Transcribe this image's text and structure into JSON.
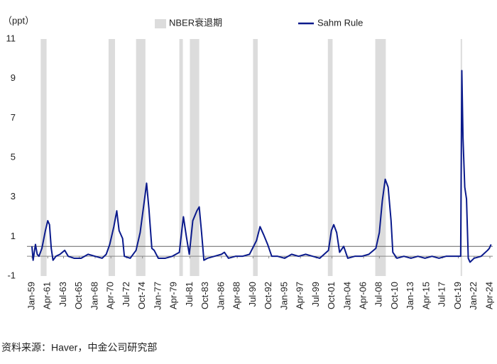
{
  "chart_data": {
    "type": "line",
    "y_unit": "（ppt）",
    "source": "资料来源：Haver，中金公司研究部",
    "ylim": [
      -1,
      11
    ],
    "yticks": [
      -1,
      1,
      3,
      5,
      7,
      9,
      11
    ],
    "xticks": [
      "Jan-59",
      "Apr-61",
      "Jul-63",
      "Oct-65",
      "Jan-68",
      "Apr-70",
      "Jul-72",
      "Oct-74",
      "Jan-77",
      "Apr-79",
      "Jul-81",
      "Oct-83",
      "Jan-86",
      "Apr-88",
      "Jul-90",
      "Oct-92",
      "Jan-95",
      "Apr-97",
      "Jul-99",
      "Oct-01",
      "Jan-04",
      "Apr-06",
      "Jul-08",
      "Oct-10",
      "Jan-13",
      "Apr-15",
      "Jul-17",
      "Oct-19",
      "Jan-22",
      "Apr-24"
    ],
    "reference_line": 0.5,
    "recession": {
      "name": "NBER衰退期",
      "color": "#dcdcdc",
      "periods": [
        [
          "Apr-60",
          "Feb-61"
        ],
        [
          "Dec-69",
          "Nov-70"
        ],
        [
          "Nov-73",
          "Mar-75"
        ],
        [
          "Jan-80",
          "Jul-80"
        ],
        [
          "Jul-81",
          "Nov-82"
        ],
        [
          "Jul-90",
          "Mar-91"
        ],
        [
          "Mar-01",
          "Nov-01"
        ],
        [
          "Dec-07",
          "Jun-09"
        ],
        [
          "Feb-20",
          "Apr-20"
        ]
      ]
    },
    "x": [
      "Jan-59",
      "Mar-59",
      "Jul-59",
      "Oct-59",
      "Jan-60",
      "Jun-60",
      "Dec-60",
      "Apr-61",
      "Jul-61",
      "Oct-61",
      "Jan-62",
      "Jun-62",
      "Jan-63",
      "Sep-63",
      "Mar-64",
      "Jan-65",
      "Jan-66",
      "Jan-67",
      "Jan-68",
      "Jan-69",
      "Aug-69",
      "Feb-70",
      "Sep-70",
      "Feb-71",
      "Jun-71",
      "Dec-71",
      "Mar-72",
      "Jan-73",
      "Nov-73",
      "Jun-74",
      "Feb-75",
      "May-75",
      "Sep-75",
      "Feb-76",
      "Jun-76",
      "Jan-77",
      "Jan-78",
      "Jan-79",
      "Jan-80",
      "Jun-80",
      "Aug-80",
      "Jan-81",
      "Jun-81",
      "Dec-81",
      "Jul-82",
      "Nov-82",
      "Mar-83",
      "Jul-83",
      "Jan-84",
      "Jan-85",
      "Jan-86",
      "Jun-86",
      "Jan-87",
      "Jan-88",
      "Jan-89",
      "Jan-90",
      "Jan-91",
      "Jul-91",
      "Jan-92",
      "Aug-92",
      "Mar-93",
      "Jan-94",
      "Jan-95",
      "Jan-96",
      "Jan-97",
      "Jan-98",
      "Jan-99",
      "Jan-00",
      "Apr-01",
      "Sep-01",
      "Jan-02",
      "Jun-02",
      "Nov-02",
      "Jun-03",
      "Jan-04",
      "Jan-05",
      "Jan-06",
      "Jan-07",
      "Jan-08",
      "Jul-08",
      "Dec-08",
      "May-09",
      "Oct-09",
      "Mar-10",
      "Jun-10",
      "Jan-11",
      "Jan-12",
      "Jan-13",
      "Jan-14",
      "Jan-15",
      "Jan-16",
      "Jan-17",
      "Jan-18",
      "Jan-19",
      "Feb-20",
      "Apr-20",
      "Jun-20",
      "Sep-20",
      "Dec-20",
      "Mar-21",
      "Jun-21",
      "Jan-22",
      "Jan-23",
      "Dec-23",
      "Mar-24",
      "Jun-24"
    ],
    "series": [
      {
        "name": "Sahm Rule",
        "color": "#0a1a8c",
        "values": [
          0.5,
          -0.2,
          0.6,
          0.1,
          0,
          0.4,
          1.3,
          1.8,
          1.6,
          0.4,
          -0.2,
          0,
          0.1,
          0.3,
          0,
          -0.1,
          -0.1,
          0.1,
          0,
          -0.1,
          0.1,
          0.6,
          1.5,
          2.3,
          1.3,
          0.9,
          0,
          -0.1,
          0.3,
          1.2,
          3.0,
          3.7,
          2.4,
          0.4,
          0.3,
          -0.1,
          -0.1,
          0,
          0.2,
          1.5,
          2.0,
          1.0,
          0.1,
          1.8,
          2.3,
          2.5,
          1.2,
          -0.2,
          -0.1,
          0,
          0.1,
          0.2,
          -0.1,
          0,
          0,
          0.1,
          0.8,
          1.5,
          1.1,
          0.6,
          0,
          0,
          -0.1,
          0.1,
          0,
          0.1,
          0,
          -0.1,
          0.3,
          1.3,
          1.6,
          1.2,
          0.2,
          0.5,
          -0.1,
          0,
          0,
          0.1,
          0.4,
          1.2,
          2.8,
          3.9,
          3.5,
          1.8,
          0.2,
          -0.1,
          0,
          -0.1,
          0,
          -0.1,
          0,
          -0.1,
          0,
          0,
          0,
          9.4,
          6.0,
          3.5,
          2.9,
          -0.1,
          -0.3,
          -0.1,
          0,
          0.3,
          0.4,
          0.6
        ]
      }
    ]
  }
}
